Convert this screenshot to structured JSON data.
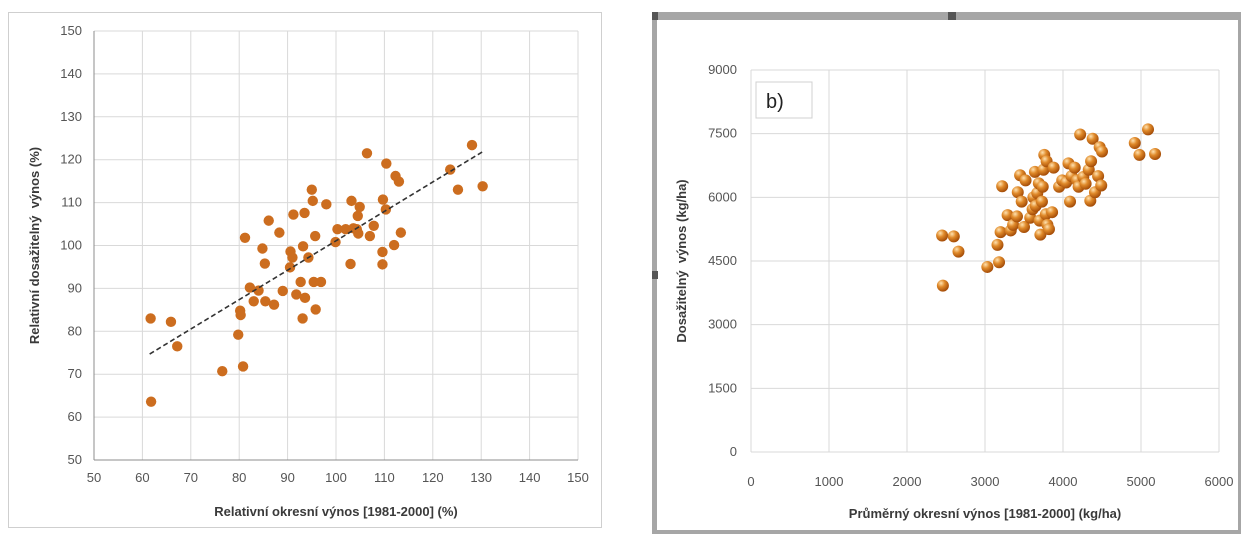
{
  "chart_data": [
    {
      "type": "scatter",
      "xlabel": "Relativní okresní výnos [1981-2000] (%)",
      "ylabel": "Relativní dosažitelný  výnos (%)",
      "xlim": [
        50,
        150
      ],
      "ylim": [
        50,
        150
      ],
      "xticks": [
        50,
        60,
        70,
        80,
        90,
        100,
        110,
        120,
        130,
        140,
        150
      ],
      "yticks": [
        50,
        60,
        70,
        80,
        90,
        100,
        110,
        120,
        130,
        140,
        150
      ],
      "grid": true,
      "marker_color": "#cc6d1f",
      "trendline": {
        "style": "dashed",
        "color": "#333333",
        "from": [
          61.5,
          74.7
        ],
        "to": [
          130.5,
          122
        ]
      },
      "points": [
        [
          61.7,
          83
        ],
        [
          61.8,
          63.6
        ],
        [
          65.9,
          82.2
        ],
        [
          67.2,
          76.5
        ],
        [
          76.5,
          70.7
        ],
        [
          79.8,
          79.2
        ],
        [
          80.2,
          84.8
        ],
        [
          80.3,
          83.8
        ],
        [
          80.8,
          71.8
        ],
        [
          81.2,
          101.8
        ],
        [
          82.2,
          90.2
        ],
        [
          83.0,
          87.0
        ],
        [
          84.0,
          89.5
        ],
        [
          84.8,
          99.3
        ],
        [
          85.3,
          95.8
        ],
        [
          85.4,
          87.0
        ],
        [
          86.1,
          105.8
        ],
        [
          87.2,
          86.2
        ],
        [
          88.3,
          103.0
        ],
        [
          89.0,
          89.4
        ],
        [
          90.5,
          94.9
        ],
        [
          90.6,
          98.6
        ],
        [
          91.0,
          97.2
        ],
        [
          91.2,
          107.2
        ],
        [
          91.8,
          88.6
        ],
        [
          92.7,
          91.5
        ],
        [
          93.1,
          83.0
        ],
        [
          93.2,
          99.8
        ],
        [
          93.5,
          107.6
        ],
        [
          93.6,
          87.8
        ],
        [
          94.3,
          97.2
        ],
        [
          95.0,
          113.0
        ],
        [
          95.2,
          110.4
        ],
        [
          95.4,
          91.5
        ],
        [
          95.7,
          102.2
        ],
        [
          95.8,
          85.1
        ],
        [
          96.9,
          91.5
        ],
        [
          98.0,
          109.6
        ],
        [
          99.9,
          100.8
        ],
        [
          100.3,
          103.8
        ],
        [
          102.0,
          103.8
        ],
        [
          103.0,
          95.7
        ],
        [
          103.2,
          110.4
        ],
        [
          103.6,
          104.0
        ],
        [
          104.3,
          103.8
        ],
        [
          104.5,
          106.9
        ],
        [
          104.6,
          102.8
        ],
        [
          104.9,
          109.0
        ],
        [
          106.4,
          121.5
        ],
        [
          107.0,
          102.2
        ],
        [
          107.8,
          104.6
        ],
        [
          109.6,
          98.5
        ],
        [
          109.6,
          95.6
        ],
        [
          109.7,
          110.7
        ],
        [
          110.3,
          108.4
        ],
        [
          110.4,
          119.1
        ],
        [
          112.0,
          100.1
        ],
        [
          112.3,
          116.2
        ],
        [
          113.0,
          114.9
        ],
        [
          113.4,
          103.0
        ],
        [
          123.6,
          117.7
        ],
        [
          125.2,
          113.0
        ],
        [
          128.1,
          123.4
        ],
        [
          130.3,
          113.8
        ]
      ]
    },
    {
      "type": "scatter",
      "panel_label": "b)",
      "xlabel": "Průměrný okresní výnos [1981-2000] (kg/ha)",
      "ylabel": "Dosažitelný  výnos (kg/ha)",
      "xlim": [
        0,
        6000
      ],
      "ylim": [
        0,
        9000
      ],
      "xticks": [
        0,
        1000,
        2000,
        3000,
        4000,
        5000,
        6000
      ],
      "yticks": [
        0,
        1500,
        3000,
        4500,
        6000,
        7500,
        9000
      ],
      "grid": true,
      "marker_color": "#e08a2a",
      "frame_color": "#a6a6a6",
      "points": [
        [
          2460,
          3920
        ],
        [
          2450,
          5100
        ],
        [
          2600,
          5080
        ],
        [
          2660,
          4720
        ],
        [
          3030,
          4360
        ],
        [
          3180,
          4470
        ],
        [
          3160,
          4880
        ],
        [
          3200,
          5180
        ],
        [
          3220,
          6260
        ],
        [
          3290,
          5580
        ],
        [
          3330,
          5220
        ],
        [
          3360,
          5350
        ],
        [
          3410,
          5550
        ],
        [
          3420,
          6120
        ],
        [
          3450,
          6520
        ],
        [
          3470,
          5900
        ],
        [
          3500,
          5300
        ],
        [
          3520,
          6400
        ],
        [
          3580,
          5520
        ],
        [
          3610,
          5720
        ],
        [
          3620,
          6000
        ],
        [
          3640,
          6600
        ],
        [
          3650,
          5800
        ],
        [
          3670,
          6100
        ],
        [
          3690,
          6330
        ],
        [
          3700,
          5450
        ],
        [
          3710,
          5120
        ],
        [
          3730,
          5900
        ],
        [
          3740,
          6250
        ],
        [
          3750,
          6650
        ],
        [
          3760,
          7000
        ],
        [
          3780,
          5600
        ],
        [
          3790,
          6850
        ],
        [
          3800,
          5350
        ],
        [
          3820,
          5250
        ],
        [
          3860,
          5650
        ],
        [
          3880,
          6700
        ],
        [
          3950,
          6250
        ],
        [
          3990,
          6400
        ],
        [
          4040,
          6350
        ],
        [
          4070,
          6800
        ],
        [
          4090,
          5900
        ],
        [
          4110,
          6500
        ],
        [
          4150,
          6700
        ],
        [
          4180,
          6400
        ],
        [
          4200,
          6250
        ],
        [
          4220,
          7480
        ],
        [
          4260,
          6480
        ],
        [
          4290,
          6320
        ],
        [
          4330,
          6650
        ],
        [
          4350,
          5920
        ],
        [
          4360,
          6850
        ],
        [
          4380,
          7380
        ],
        [
          4410,
          6120
        ],
        [
          4450,
          6500
        ],
        [
          4470,
          7180
        ],
        [
          4490,
          6280
        ],
        [
          4500,
          7080
        ],
        [
          4920,
          7280
        ],
        [
          4980,
          7000
        ],
        [
          5090,
          7600
        ],
        [
          5180,
          7020
        ]
      ]
    }
  ]
}
